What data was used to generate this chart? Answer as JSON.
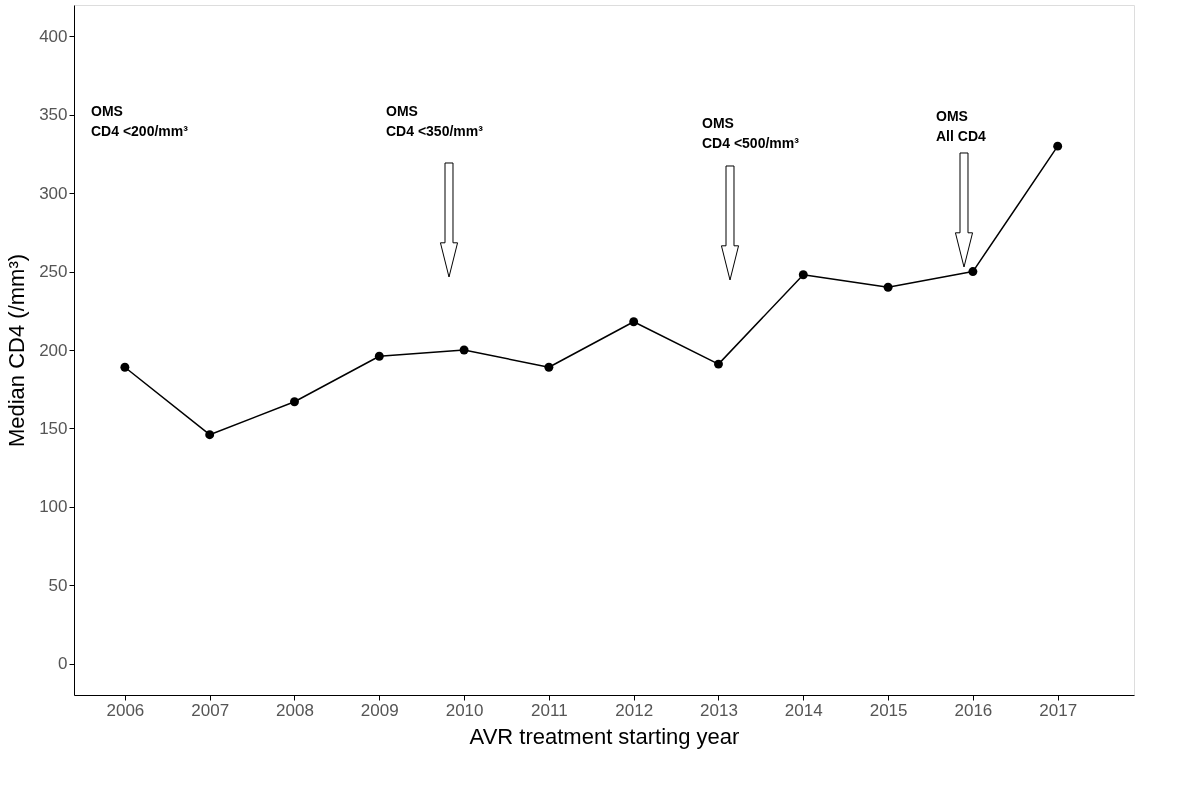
{
  "chart_data": {
    "type": "line",
    "xlabel": "AVR treatment starting year",
    "ylabel": "Median CD4 (/mm³)",
    "x": [
      2006,
      2007,
      2008,
      2009,
      2010,
      2011,
      2012,
      2013,
      2014,
      2015,
      2016,
      2017
    ],
    "series": [
      {
        "color": "#000000",
        "values": [
          189,
          146,
          167,
          196,
          200,
          189,
          218,
          191,
          248,
          240,
          250,
          330
        ]
      }
    ],
    "xlim": [
      2005.4,
      2017.9
    ],
    "xticks": [
      2006,
      2007,
      2008,
      2009,
      2010,
      2011,
      2012,
      2013,
      2014,
      2015,
      2016,
      2017
    ],
    "ylim": [
      -20,
      420
    ],
    "yticks": [
      0,
      50,
      100,
      150,
      200,
      250,
      300,
      350,
      400
    ],
    "grid": false,
    "marker": "circle",
    "line_style": "solid",
    "annotations": [
      "OMS\nCD4 <200/mm³",
      "OMS\nCD4 <350/mm³",
      "OMS\nCD4 <500/mm³",
      "OMS\nAll CD4"
    ]
  }
}
